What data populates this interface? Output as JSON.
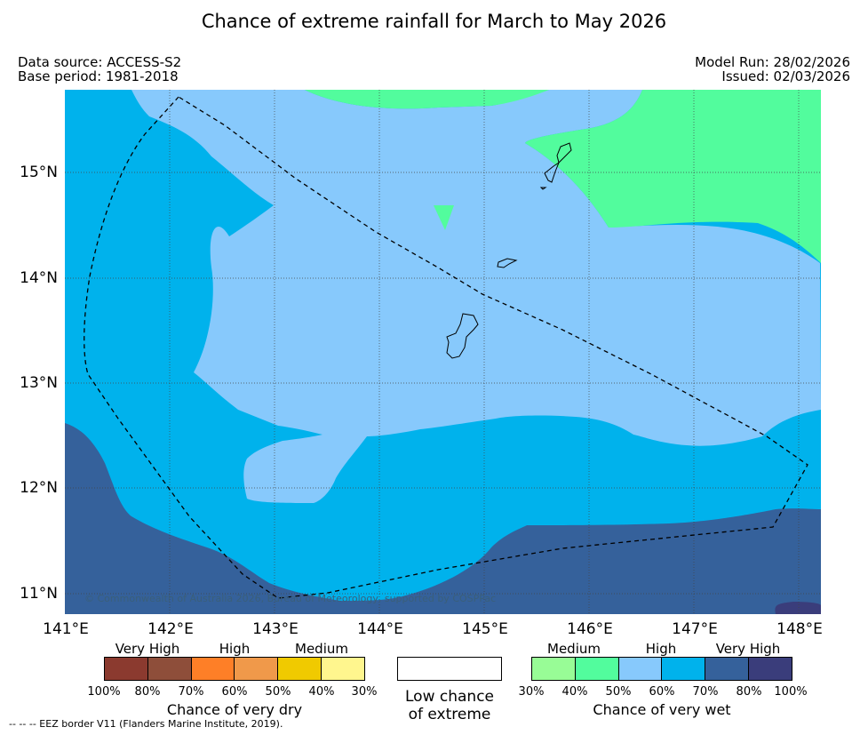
{
  "title": "Chance of extreme rainfall for March to May 2026",
  "data_source": "Data source: ACCESS-S2",
  "base_period": "Base period: 1981-2018",
  "model_run": "Model Run: 28/02/2026",
  "issued": "Issued: 02/03/2026",
  "copyright": "© Commonwealth of Australia 2026, Bureau of Meteorology, supported by COSPPac",
  "footnote": "-- -- -- EEZ border V11 (Flanders Marine Institute, 2019).",
  "lat_labels": [
    "15°N",
    "14°N",
    "13°N",
    "12°N",
    "11°N"
  ],
  "lon_labels": [
    "141°E",
    "142°E",
    "143°E",
    "144°E",
    "145°E",
    "146°E",
    "147°E",
    "148°E"
  ],
  "colors": {
    "dry": [
      "#8b3a2f",
      "#8e4e3a",
      "#fe7f27",
      "#f0994a",
      "#f0ca00",
      "#fff68e"
    ],
    "wet": [
      "#98fc96",
      "#52fc9d",
      "#87c9fc",
      "#00b2ec",
      "#35619b",
      "#3a3d7b"
    ],
    "neutral": "#ffffff"
  },
  "legend": {
    "dry_title": "Chance of very dry",
    "dry_bands": [
      "Very High",
      "High",
      "Medium"
    ],
    "dry_pcts": [
      "100%",
      "80%",
      "70%",
      "60%",
      "50%",
      "40%",
      "30%"
    ],
    "neutral_label_1": "Low chance",
    "neutral_label_2": "of extreme",
    "wet_title": "Chance of very wet",
    "wet_bands": [
      "Medium",
      "High",
      "Very High"
    ],
    "wet_pcts": [
      "30%",
      "40%",
      "50%",
      "60%",
      "70%",
      "80%",
      "100%"
    ]
  }
}
